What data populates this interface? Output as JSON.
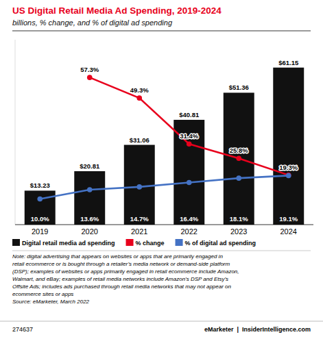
{
  "chart_data": {
    "type": "bar",
    "title": "US Digital Retail Media Ad Spending, 2019-2024",
    "subtitle": "billions, % change, and % of digital ad spending",
    "categories": [
      "2019",
      "2020",
      "2021",
      "2022",
      "2023",
      "2024"
    ],
    "series": [
      {
        "name": "Digital retail media ad spending",
        "type": "bar",
        "color": "#111111",
        "values": [
          13.23,
          20.81,
          31.06,
          40.81,
          51.36,
          61.15
        ],
        "value_labels": [
          "$13.23",
          "$20.81",
          "$31.06",
          "$40.81",
          "$51.36",
          "$61.15"
        ]
      },
      {
        "name": "% change",
        "type": "line",
        "color": "#e8001c",
        "marker": "circle",
        "values": [
          null,
          57.3,
          49.3,
          31.4,
          25.8,
          19.3
        ],
        "value_labels": [
          null,
          "57.3%",
          "49.3%",
          "31.4%",
          "25.8%",
          "19.3%"
        ]
      },
      {
        "name": "% of digital ad spending",
        "type": "line",
        "color": "#4472c4",
        "marker": "circle",
        "values": [
          10.0,
          13.6,
          14.7,
          16.4,
          18.1,
          19.1
        ],
        "value_labels": [
          "10.0%",
          "13.6%",
          "14.7%",
          "16.4%",
          "18.1%",
          "19.1%"
        ]
      }
    ],
    "ylim": [
      0,
      72
    ],
    "tick_labels": "x",
    "data_labels": true,
    "grid": false,
    "legend": "bottom",
    "annotations": [
      "Note: digital advertising that appears on websites or apps that are primarily engaged in\nretail ecommerce or is bought through a retailer’s media network or demand-side platform\n(DSP); examples of websites or apps primarily engaged in retail ecommerce include Amazon,\nWalmart, and eBay; examples of retail media networks include Amazon’s DSP and Etsy’s\nOffsite Ads; includes ads purchased through retail media networks that may not appear on\necommerce sites or apps\nSource: eMarketer, March 2022",
      "274637",
      "eMarketer  |  InsiderIntelligence.com"
    ]
  }
}
